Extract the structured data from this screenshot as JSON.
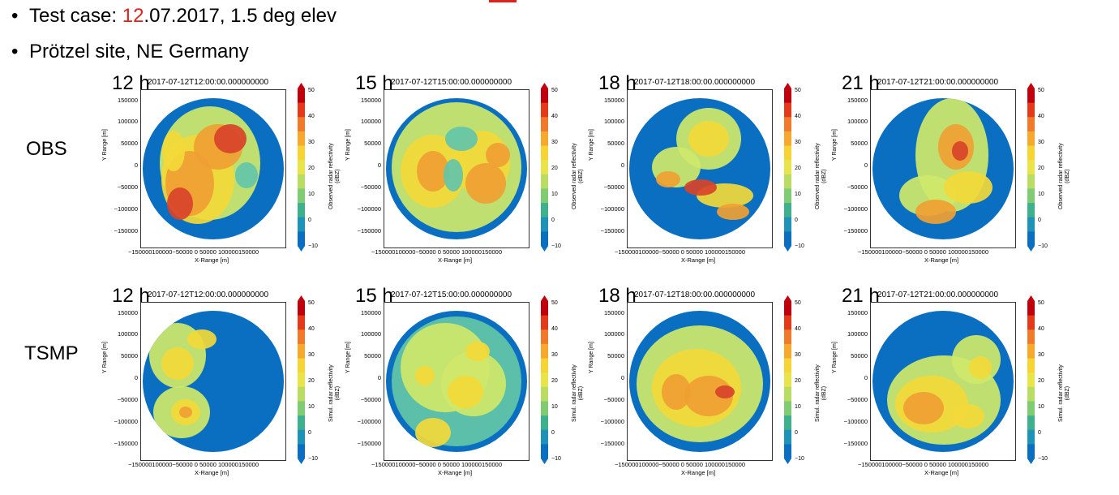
{
  "header": {
    "bullet1_prefix": "Test case: ",
    "bullet1_highlight": "12",
    "bullet1_suffix": ".07.2017, 1.5 deg elev",
    "bullet2": "Prötzel site, NE Germany",
    "bullet_char": "•"
  },
  "rows": [
    {
      "label": "OBS",
      "colorbar_label": "Observed radar reflectivity\n(dBZ)"
    },
    {
      "label": "TSMP",
      "colorbar_label": "Simul. radar reflectivity\n(dBZ)"
    }
  ],
  "panels": [
    {
      "hour": "12 h",
      "timestamp": "2017-07-12T12:00:00.000000000"
    },
    {
      "hour": "15 h",
      "timestamp": "2017-07-12T15:00:00.000000000"
    },
    {
      "hour": "18 h",
      "timestamp": "2017-07-12T18:00:00.000000000"
    },
    {
      "hour": "21 h",
      "timestamp": "2017-07-12T21:00:00.000000000"
    }
  ],
  "axes": {
    "xlabel": "X-Range [m]",
    "ylabel": "Y Range [m]",
    "yticks": [
      "150000",
      "100000",
      "50000",
      "0",
      "−50000",
      "−100000",
      "−150000"
    ],
    "xticks_text": "−150000100000−50000   0   50000 100000150000"
  },
  "colorbar": {
    "ticks": [
      "50",
      "40",
      "30",
      "20",
      "10",
      "0",
      "−10"
    ],
    "colors": [
      "#c0000c",
      "#e43a1a",
      "#f07a2a",
      "#f7a92e",
      "#f5d434",
      "#e8e44a",
      "#b9dd62",
      "#7fcc73",
      "#3fb08c",
      "#1e93b8",
      "#0b6fc1"
    ]
  },
  "palette": {
    "background": "#0b6fc1",
    "low": "#63c5a8",
    "light": "#cfe86a",
    "yellow": "#f3d93a",
    "orange": "#f0a032",
    "red": "#d8432a"
  }
}
